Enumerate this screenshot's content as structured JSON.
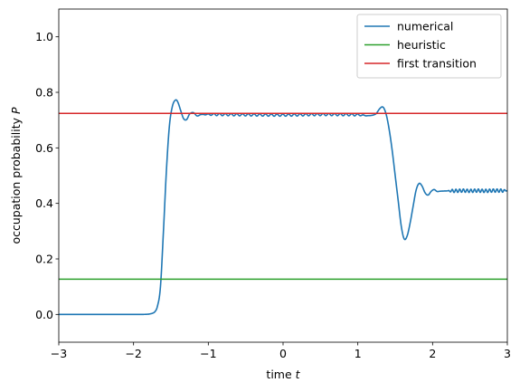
{
  "chart_data": {
    "type": "line",
    "xlabel": "time",
    "xlabel_var": "t",
    "ylabel": "occupation probability",
    "ylabel_var": "P",
    "xlim": [
      -3,
      3
    ],
    "ylim": [
      -0.1,
      1.1
    ],
    "xticks": [
      -3,
      -2,
      -1,
      0,
      1,
      2,
      3
    ],
    "xtick_labels": [
      "−3",
      "−2",
      "−1",
      "0",
      "1",
      "2",
      "3"
    ],
    "yticks": [
      0.0,
      0.2,
      0.4,
      0.6,
      0.8,
      1.0
    ],
    "ytick_labels": [
      "0.0",
      "0.2",
      "0.4",
      "0.6",
      "0.8",
      "1.0"
    ],
    "grid": false,
    "legend_position": "top-right",
    "series": [
      {
        "name": "numerical",
        "color": "#1f77b4",
        "kind": "curve",
        "points": [
          [
            -3.0,
            0.0
          ],
          [
            -2.5,
            0.0
          ],
          [
            -2.0,
            0.0
          ],
          [
            -1.8,
            0.001
          ],
          [
            -1.72,
            0.008
          ],
          [
            -1.68,
            0.03
          ],
          [
            -1.64,
            0.1
          ],
          [
            -1.6,
            0.3
          ],
          [
            -1.56,
            0.52
          ],
          [
            -1.52,
            0.68
          ],
          [
            -1.48,
            0.75
          ],
          [
            -1.44,
            0.772
          ],
          [
            -1.41,
            0.766
          ],
          [
            -1.37,
            0.735
          ],
          [
            -1.33,
            0.705
          ],
          [
            -1.29,
            0.702
          ],
          [
            -1.25,
            0.722
          ],
          [
            -1.2,
            0.727
          ],
          [
            -1.15,
            0.715
          ],
          [
            -1.1,
            0.72
          ],
          [
            -0.5,
            0.719
          ],
          [
            0.0,
            0.718
          ],
          [
            0.5,
            0.72
          ],
          [
            1.0,
            0.719
          ],
          [
            1.15,
            0.716
          ],
          [
            1.24,
            0.722
          ],
          [
            1.3,
            0.743
          ],
          [
            1.34,
            0.746
          ],
          [
            1.38,
            0.72
          ],
          [
            1.42,
            0.665
          ],
          [
            1.46,
            0.59
          ],
          [
            1.5,
            0.5
          ],
          [
            1.54,
            0.41
          ],
          [
            1.58,
            0.32
          ],
          [
            1.62,
            0.272
          ],
          [
            1.66,
            0.283
          ],
          [
            1.7,
            0.33
          ],
          [
            1.74,
            0.39
          ],
          [
            1.78,
            0.448
          ],
          [
            1.82,
            0.472
          ],
          [
            1.86,
            0.462
          ],
          [
            1.9,
            0.438
          ],
          [
            1.94,
            0.43
          ],
          [
            1.98,
            0.443
          ],
          [
            2.02,
            0.45
          ],
          [
            2.06,
            0.443
          ],
          [
            2.1,
            0.444
          ],
          [
            2.2,
            0.445
          ],
          [
            2.3,
            0.445
          ],
          [
            2.4,
            0.446
          ],
          [
            2.5,
            0.445
          ],
          [
            2.6,
            0.446
          ],
          [
            2.7,
            0.445
          ],
          [
            2.8,
            0.446
          ],
          [
            2.9,
            0.446
          ],
          [
            3.0,
            0.446
          ]
        ],
        "ripples": [
          {
            "from": -1.1,
            "to": 1.15,
            "amplitude": 0.004,
            "cycles_per_unit": 13
          },
          {
            "from": 2.2,
            "to": 3.0,
            "amplitude": 0.006,
            "cycles_per_unit": 20
          }
        ]
      },
      {
        "name": "heuristic",
        "color": "#2ca02c",
        "kind": "hline",
        "y": 0.127
      },
      {
        "name": "first transition",
        "color": "#d62728",
        "kind": "hline",
        "y": 0.724
      }
    ]
  }
}
